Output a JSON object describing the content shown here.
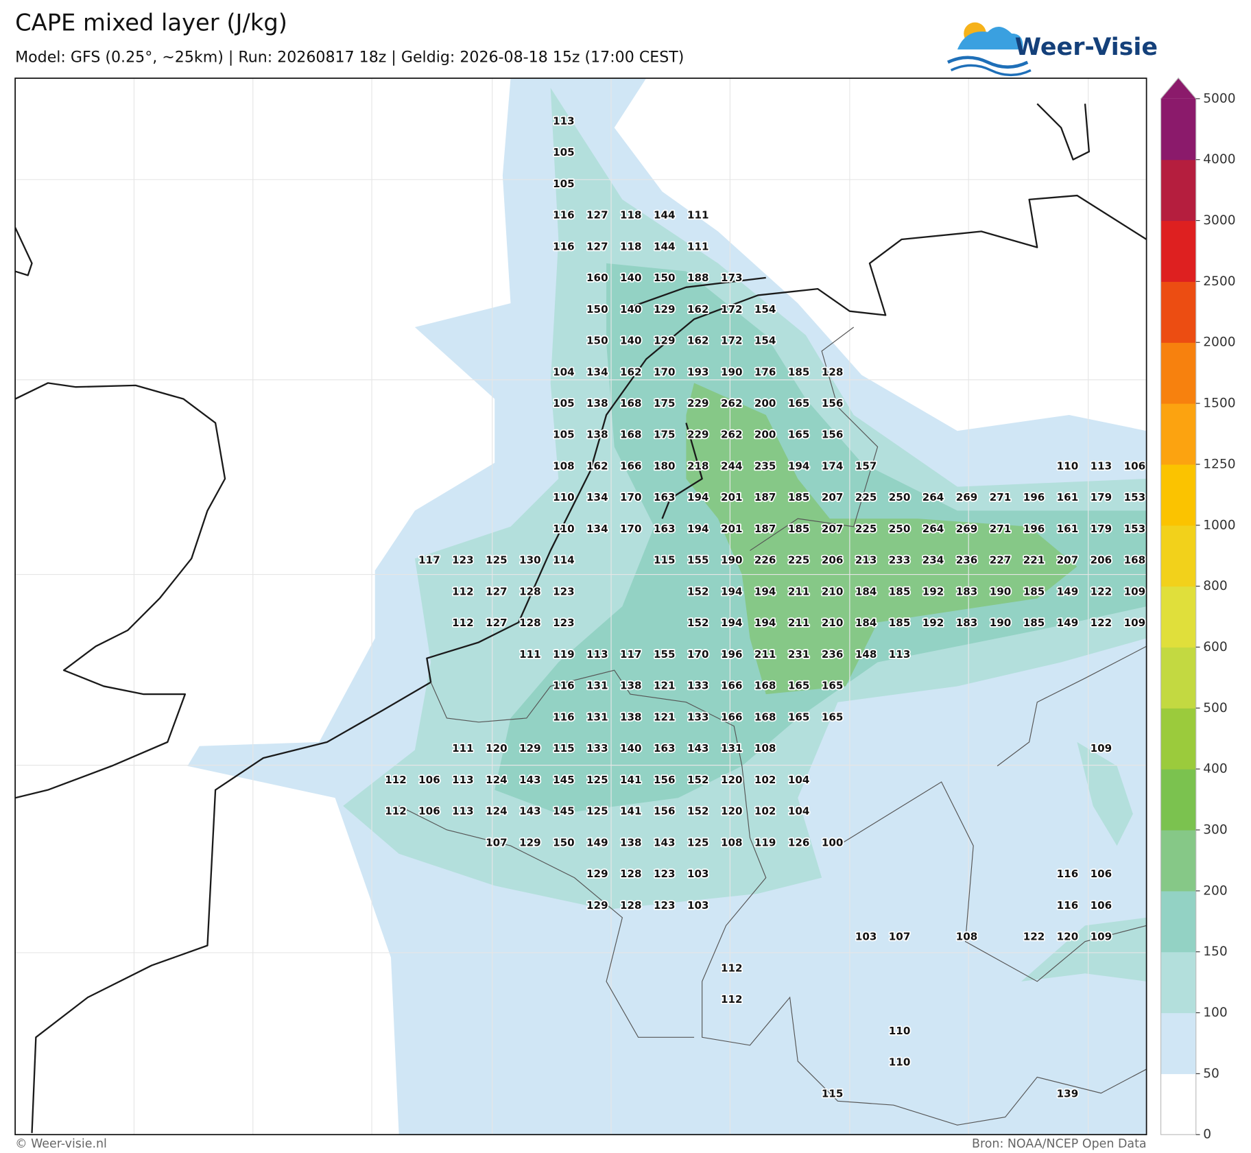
{
  "title": "CAPE mixed layer (J/kg)",
  "subtitle": "Model: GFS (0.25°, ~25km)  |  Run: 20260817 18z  |  Geldig: 2026-08-18 15z (17:00 CEST)",
  "logo": "Weer-Visie",
  "footer": {
    "left": "© Weer-visie.nl",
    "right": "Bron: NOAA/NCEP Open Data"
  },
  "colorbar": {
    "ticks": [
      0,
      50,
      100,
      150,
      200,
      300,
      400,
      500,
      600,
      800,
      1000,
      1250,
      1500,
      2000,
      2500,
      3000,
      4000,
      5000
    ],
    "colors": [
      "#ffffff",
      "#d0e6f5",
      "#b3dfdc",
      "#93d2c4",
      "#86c887",
      "#7bc24f",
      "#9bcb3c",
      "#c3d941",
      "#e0df3b",
      "#f2d11b",
      "#fbc300",
      "#fca310",
      "#f7810e",
      "#ec4d12",
      "#de2020",
      "#b51e3e",
      "#8b1a6b"
    ]
  },
  "map": {
    "labels": [
      [
        null,
        null,
        null,
        null,
        null,
        113,
        null,
        null,
        null,
        null,
        null,
        null,
        null,
        null,
        null,
        null,
        null,
        null,
        null,
        null,
        null,
        null,
        null
      ],
      [
        null,
        null,
        null,
        null,
        null,
        105,
        null,
        null,
        null,
        null,
        null,
        null,
        null,
        null,
        null,
        null,
        null,
        null,
        null,
        null,
        null,
        null,
        null
      ],
      [
        null,
        null,
        null,
        null,
        null,
        105,
        null,
        null,
        null,
        null,
        null,
        null,
        null,
        null,
        null,
        null,
        null,
        null,
        null,
        null,
        null,
        null,
        null
      ],
      [
        null,
        null,
        null,
        null,
        null,
        116,
        127,
        118,
        144,
        111,
        null,
        null,
        null,
        null,
        null,
        null,
        null,
        null,
        null,
        null,
        null,
        null,
        null
      ],
      [
        null,
        null,
        null,
        null,
        null,
        116,
        127,
        118,
        144,
        111,
        null,
        null,
        null,
        null,
        null,
        null,
        null,
        null,
        null,
        null,
        null,
        null,
        null
      ],
      [
        null,
        null,
        null,
        null,
        null,
        null,
        160,
        140,
        150,
        188,
        173,
        null,
        null,
        null,
        null,
        null,
        null,
        null,
        null,
        null,
        null,
        null,
        null
      ],
      [
        null,
        null,
        null,
        null,
        null,
        null,
        150,
        140,
        129,
        162,
        172,
        154,
        null,
        null,
        null,
        null,
        null,
        null,
        null,
        null,
        null,
        null,
        null
      ],
      [
        null,
        null,
        null,
        null,
        null,
        null,
        150,
        140,
        129,
        162,
        172,
        154,
        null,
        null,
        null,
        null,
        null,
        null,
        null,
        null,
        null,
        null,
        null
      ],
      [
        null,
        null,
        null,
        null,
        null,
        104,
        134,
        162,
        170,
        193,
        190,
        176,
        185,
        128,
        null,
        null,
        null,
        null,
        null,
        null,
        null,
        null,
        null
      ],
      [
        null,
        null,
        null,
        null,
        null,
        105,
        138,
        168,
        175,
        229,
        262,
        200,
        165,
        156,
        null,
        null,
        null,
        null,
        null,
        null,
        null,
        null,
        null
      ],
      [
        null,
        null,
        null,
        null,
        null,
        105,
        138,
        168,
        175,
        229,
        262,
        200,
        165,
        156,
        null,
        null,
        null,
        null,
        null,
        null,
        null,
        null,
        null
      ],
      [
        null,
        null,
        null,
        null,
        null,
        108,
        162,
        166,
        180,
        218,
        244,
        235,
        194,
        174,
        157,
        null,
        null,
        null,
        null,
        null,
        110,
        113,
        106
      ],
      [
        null,
        null,
        null,
        null,
        null,
        110,
        134,
        170,
        163,
        194,
        201,
        187,
        185,
        207,
        225,
        250,
        264,
        269,
        271,
        196,
        161,
        179,
        153
      ],
      [
        null,
        null,
        null,
        null,
        null,
        110,
        134,
        170,
        163,
        194,
        201,
        187,
        185,
        207,
        225,
        250,
        264,
        269,
        271,
        196,
        161,
        179,
        153
      ],
      [
        null,
        117,
        123,
        125,
        130,
        114,
        null,
        null,
        115,
        155,
        190,
        226,
        225,
        206,
        213,
        233,
        234,
        236,
        227,
        221,
        207,
        206,
        168
      ],
      [
        null,
        null,
        112,
        127,
        128,
        123,
        null,
        null,
        null,
        152,
        194,
        194,
        211,
        210,
        184,
        185,
        192,
        183,
        190,
        185,
        149,
        122,
        109
      ],
      [
        null,
        null,
        112,
        127,
        128,
        123,
        null,
        null,
        null,
        152,
        194,
        194,
        211,
        210,
        184,
        185,
        192,
        183,
        190,
        185,
        149,
        122,
        109
      ],
      [
        null,
        null,
        null,
        null,
        111,
        119,
        113,
        117,
        155,
        170,
        196,
        211,
        231,
        236,
        148,
        113,
        null,
        null,
        null,
        null,
        null,
        null,
        null
      ],
      [
        null,
        null,
        null,
        null,
        null,
        116,
        131,
        138,
        121,
        133,
        166,
        168,
        165,
        165,
        null,
        null,
        null,
        null,
        null,
        null,
        null,
        null,
        null
      ],
      [
        null,
        null,
        null,
        null,
        null,
        116,
        131,
        138,
        121,
        133,
        166,
        168,
        165,
        165,
        null,
        null,
        null,
        null,
        null,
        null,
        null,
        null,
        null
      ],
      [
        null,
        null,
        111,
        120,
        129,
        115,
        133,
        140,
        163,
        143,
        131,
        108,
        null,
        null,
        null,
        null,
        null,
        null,
        null,
        null,
        null,
        109,
        null
      ],
      [
        112,
        106,
        113,
        124,
        143,
        145,
        125,
        141,
        156,
        152,
        120,
        102,
        104,
        null,
        null,
        null,
        null,
        null,
        null,
        null,
        null,
        null,
        null
      ],
      [
        112,
        106,
        113,
        124,
        143,
        145,
        125,
        141,
        156,
        152,
        120,
        102,
        104,
        null,
        null,
        null,
        null,
        null,
        null,
        null,
        null,
        null,
        null
      ],
      [
        null,
        null,
        null,
        107,
        129,
        150,
        149,
        138,
        143,
        125,
        108,
        119,
        126,
        100,
        null,
        null,
        null,
        null,
        null,
        null,
        null,
        null,
        null
      ],
      [
        null,
        null,
        null,
        null,
        null,
        null,
        129,
        128,
        123,
        103,
        null,
        null,
        null,
        null,
        null,
        null,
        null,
        null,
        null,
        null,
        116,
        106,
        null
      ],
      [
        null,
        null,
        null,
        null,
        null,
        null,
        129,
        128,
        123,
        103,
        null,
        null,
        null,
        null,
        null,
        null,
        null,
        null,
        null,
        null,
        116,
        106,
        null
      ],
      [
        null,
        null,
        null,
        null,
        null,
        null,
        null,
        null,
        null,
        null,
        null,
        null,
        null,
        null,
        103,
        107,
        null,
        108,
        null,
        122,
        120,
        109,
        null
      ],
      [
        null,
        null,
        null,
        null,
        null,
        null,
        null,
        null,
        null,
        null,
        112,
        null,
        null,
        null,
        null,
        null,
        null,
        null,
        null,
        null,
        null,
        null,
        null
      ],
      [
        null,
        null,
        null,
        null,
        null,
        null,
        null,
        null,
        null,
        null,
        112,
        null,
        null,
        null,
        null,
        null,
        null,
        null,
        null,
        null,
        null,
        null,
        null
      ],
      [
        null,
        null,
        null,
        null,
        null,
        null,
        null,
        null,
        null,
        null,
        null,
        null,
        null,
        null,
        null,
        110,
        null,
        null,
        null,
        null,
        null,
        null,
        null
      ],
      [
        null,
        null,
        null,
        null,
        null,
        null,
        null,
        null,
        null,
        null,
        null,
        null,
        null,
        null,
        null,
        110,
        null,
        null,
        null,
        null,
        null,
        null,
        null
      ],
      [
        null,
        null,
        null,
        null,
        null,
        null,
        null,
        null,
        null,
        null,
        null,
        null,
        null,
        115,
        null,
        null,
        null,
        null,
        null,
        null,
        139,
        null,
        null
      ]
    ]
  }
}
